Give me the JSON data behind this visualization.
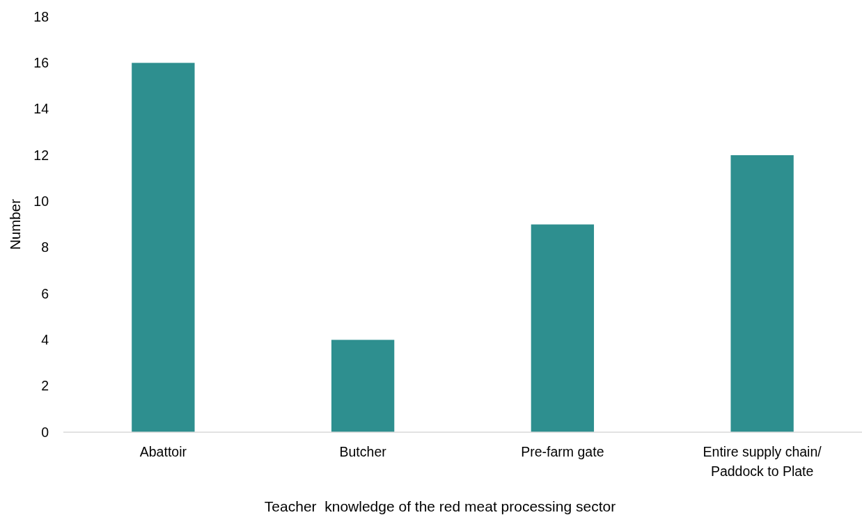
{
  "chart_data": {
    "type": "bar",
    "xlabel": "Teacher  knowledge of the red meat processing sector",
    "ylabel": "Number",
    "categories": [
      "Abattoir",
      "Butcher",
      "Pre-farm gate",
      "Entire supply chain/\nPaddock to Plate"
    ],
    "values": [
      16,
      4,
      9,
      12
    ],
    "color": "#2e8f8f",
    "ylim": [
      0,
      18
    ],
    "yticks": [
      0,
      2,
      4,
      6,
      8,
      10,
      12,
      14,
      16,
      18
    ],
    "grid": false
  }
}
